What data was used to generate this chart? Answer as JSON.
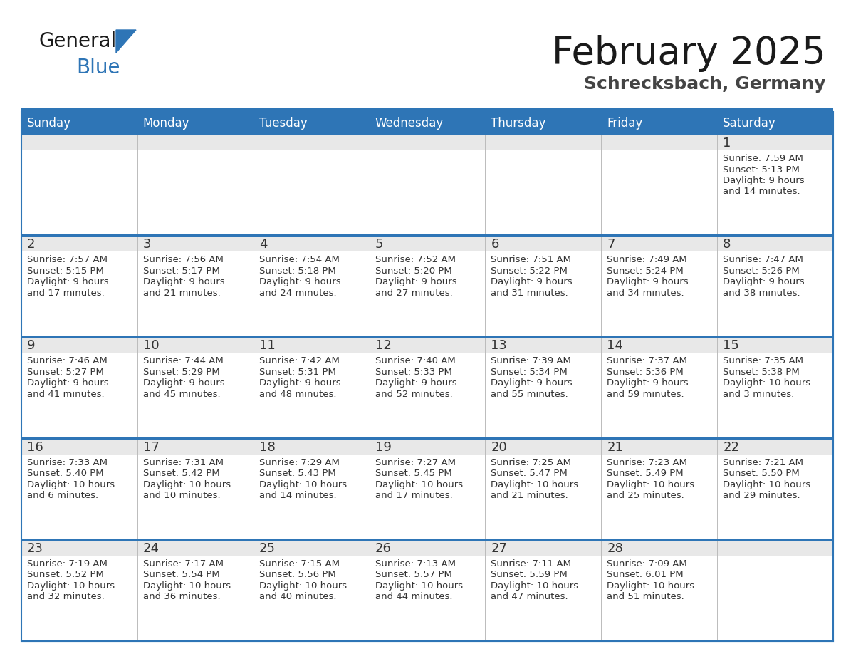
{
  "title": "February 2025",
  "subtitle": "Schrecksbach, Germany",
  "header_bg": "#2E75B6",
  "header_text_color": "#FFFFFF",
  "cell_bg": "#FFFFFF",
  "cell_top_strip": "#E8E8E8",
  "day_number_color": "#333333",
  "text_color": "#333333",
  "border_color": "#AAAAAA",
  "row_separator_color": "#2E75B6",
  "days_of_week": [
    "Sunday",
    "Monday",
    "Tuesday",
    "Wednesday",
    "Thursday",
    "Friday",
    "Saturday"
  ],
  "calendar_data": [
    [
      null,
      null,
      null,
      null,
      null,
      null,
      {
        "day": "1",
        "sunrise": "7:59 AM",
        "sunset": "5:13 PM",
        "daylight1": "9 hours",
        "daylight2": "and 14 minutes."
      }
    ],
    [
      {
        "day": "2",
        "sunrise": "7:57 AM",
        "sunset": "5:15 PM",
        "daylight1": "9 hours",
        "daylight2": "and 17 minutes."
      },
      {
        "day": "3",
        "sunrise": "7:56 AM",
        "sunset": "5:17 PM",
        "daylight1": "9 hours",
        "daylight2": "and 21 minutes."
      },
      {
        "day": "4",
        "sunrise": "7:54 AM",
        "sunset": "5:18 PM",
        "daylight1": "9 hours",
        "daylight2": "and 24 minutes."
      },
      {
        "day": "5",
        "sunrise": "7:52 AM",
        "sunset": "5:20 PM",
        "daylight1": "9 hours",
        "daylight2": "and 27 minutes."
      },
      {
        "day": "6",
        "sunrise": "7:51 AM",
        "sunset": "5:22 PM",
        "daylight1": "9 hours",
        "daylight2": "and 31 minutes."
      },
      {
        "day": "7",
        "sunrise": "7:49 AM",
        "sunset": "5:24 PM",
        "daylight1": "9 hours",
        "daylight2": "and 34 minutes."
      },
      {
        "day": "8",
        "sunrise": "7:47 AM",
        "sunset": "5:26 PM",
        "daylight1": "9 hours",
        "daylight2": "and 38 minutes."
      }
    ],
    [
      {
        "day": "9",
        "sunrise": "7:46 AM",
        "sunset": "5:27 PM",
        "daylight1": "9 hours",
        "daylight2": "and 41 minutes."
      },
      {
        "day": "10",
        "sunrise": "7:44 AM",
        "sunset": "5:29 PM",
        "daylight1": "9 hours",
        "daylight2": "and 45 minutes."
      },
      {
        "day": "11",
        "sunrise": "7:42 AM",
        "sunset": "5:31 PM",
        "daylight1": "9 hours",
        "daylight2": "and 48 minutes."
      },
      {
        "day": "12",
        "sunrise": "7:40 AM",
        "sunset": "5:33 PM",
        "daylight1": "9 hours",
        "daylight2": "and 52 minutes."
      },
      {
        "day": "13",
        "sunrise": "7:39 AM",
        "sunset": "5:34 PM",
        "daylight1": "9 hours",
        "daylight2": "and 55 minutes."
      },
      {
        "day": "14",
        "sunrise": "7:37 AM",
        "sunset": "5:36 PM",
        "daylight1": "9 hours",
        "daylight2": "and 59 minutes."
      },
      {
        "day": "15",
        "sunrise": "7:35 AM",
        "sunset": "5:38 PM",
        "daylight1": "10 hours",
        "daylight2": "and 3 minutes."
      }
    ],
    [
      {
        "day": "16",
        "sunrise": "7:33 AM",
        "sunset": "5:40 PM",
        "daylight1": "10 hours",
        "daylight2": "and 6 minutes."
      },
      {
        "day": "17",
        "sunrise": "7:31 AM",
        "sunset": "5:42 PM",
        "daylight1": "10 hours",
        "daylight2": "and 10 minutes."
      },
      {
        "day": "18",
        "sunrise": "7:29 AM",
        "sunset": "5:43 PM",
        "daylight1": "10 hours",
        "daylight2": "and 14 minutes."
      },
      {
        "day": "19",
        "sunrise": "7:27 AM",
        "sunset": "5:45 PM",
        "daylight1": "10 hours",
        "daylight2": "and 17 minutes."
      },
      {
        "day": "20",
        "sunrise": "7:25 AM",
        "sunset": "5:47 PM",
        "daylight1": "10 hours",
        "daylight2": "and 21 minutes."
      },
      {
        "day": "21",
        "sunrise": "7:23 AM",
        "sunset": "5:49 PM",
        "daylight1": "10 hours",
        "daylight2": "and 25 minutes."
      },
      {
        "day": "22",
        "sunrise": "7:21 AM",
        "sunset": "5:50 PM",
        "daylight1": "10 hours",
        "daylight2": "and 29 minutes."
      }
    ],
    [
      {
        "day": "23",
        "sunrise": "7:19 AM",
        "sunset": "5:52 PM",
        "daylight1": "10 hours",
        "daylight2": "and 32 minutes."
      },
      {
        "day": "24",
        "sunrise": "7:17 AM",
        "sunset": "5:54 PM",
        "daylight1": "10 hours",
        "daylight2": "and 36 minutes."
      },
      {
        "day": "25",
        "sunrise": "7:15 AM",
        "sunset": "5:56 PM",
        "daylight1": "10 hours",
        "daylight2": "and 40 minutes."
      },
      {
        "day": "26",
        "sunrise": "7:13 AM",
        "sunset": "5:57 PM",
        "daylight1": "10 hours",
        "daylight2": "and 44 minutes."
      },
      {
        "day": "27",
        "sunrise": "7:11 AM",
        "sunset": "5:59 PM",
        "daylight1": "10 hours",
        "daylight2": "and 47 minutes."
      },
      {
        "day": "28",
        "sunrise": "7:09 AM",
        "sunset": "6:01 PM",
        "daylight1": "10 hours",
        "daylight2": "and 51 minutes."
      },
      null
    ]
  ],
  "logo_text1": "General",
  "logo_text2": "Blue",
  "logo_text1_color": "#1A1A1A",
  "logo_text2_color": "#2E75B6",
  "logo_triangle_color": "#2E75B6",
  "title_color": "#1A1A1A",
  "subtitle_color": "#444444"
}
